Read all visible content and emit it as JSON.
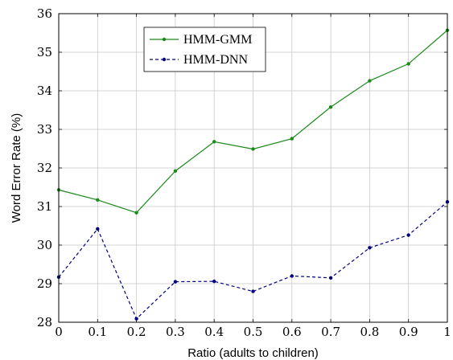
{
  "chart_data": {
    "type": "line",
    "xlabel": "Ratio (adults to children)",
    "ylabel": "Word Error Rate (%)",
    "x": [
      0,
      0.1,
      0.2,
      0.3,
      0.4,
      0.5,
      0.6,
      0.7,
      0.8,
      0.9,
      1
    ],
    "xlim": [
      0,
      1
    ],
    "ylim": [
      28,
      36
    ],
    "x_ticks": [
      "0",
      "0.1",
      "0.2",
      "0.3",
      "0.4",
      "0.5",
      "0.6",
      "0.7",
      "0.8",
      "0.9",
      "1"
    ],
    "y_ticks": [
      "28",
      "29",
      "30",
      "31",
      "32",
      "33",
      "34",
      "35",
      "36"
    ],
    "grid": true,
    "legend_position": "top-center",
    "series": [
      {
        "name": "HMM-GMM",
        "color": "#1a8a1a",
        "style": "solid",
        "marker": "circle",
        "values": [
          31.43,
          31.17,
          30.84,
          31.92,
          32.68,
          32.49,
          32.76,
          33.58,
          34.26,
          34.7,
          35.57
        ]
      },
      {
        "name": "HMM-DNN",
        "color": "#000080",
        "style": "dashed",
        "marker": "circle",
        "values": [
          29.17,
          30.42,
          28.09,
          29.05,
          29.06,
          28.8,
          29.2,
          29.15,
          29.93,
          30.26,
          31.12
        ]
      }
    ]
  }
}
